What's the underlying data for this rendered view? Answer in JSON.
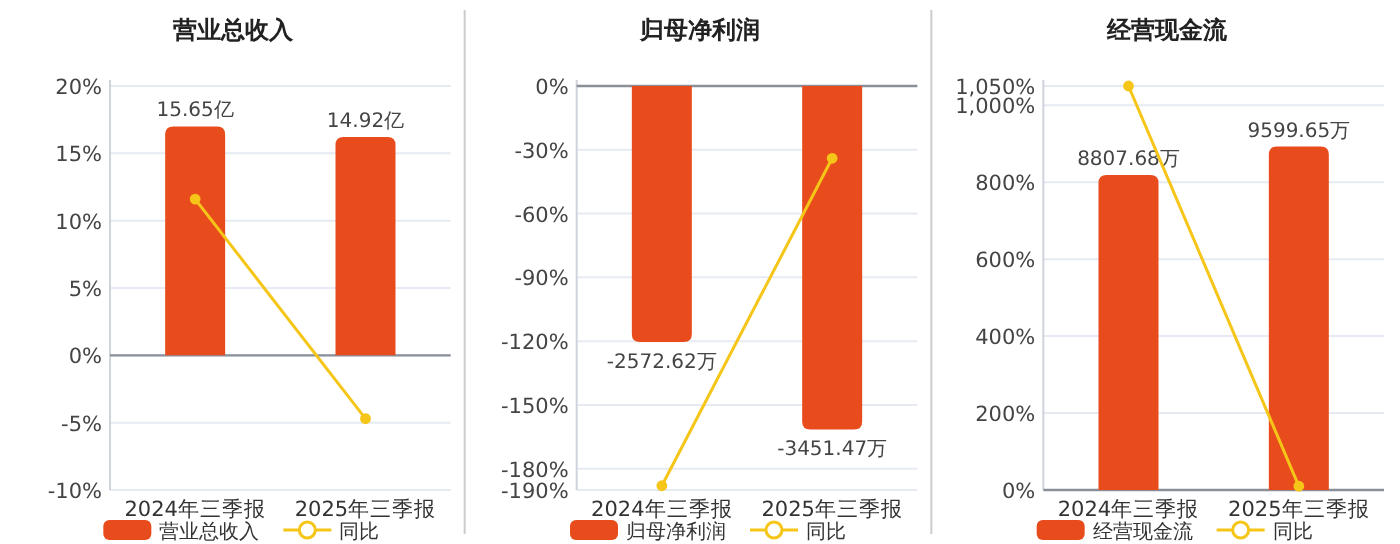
{
  "chart_data": [
    {
      "type": "bar",
      "title": "营业总收入",
      "categories": [
        "2024年三季报",
        "2025年三季报"
      ],
      "series": [
        {
          "name": "营业总收入",
          "color": "#e84c1c",
          "values": [
            15.65,
            14.92
          ],
          "value_labels": [
            "15.65亿",
            "14.92亿"
          ],
          "axis": "y2"
        },
        {
          "name": "同比",
          "type": "line",
          "color": "#f5c518",
          "values": [
            11.6,
            -4.7
          ],
          "marker": "circle"
        }
      ],
      "ylim": [
        -10,
        20
      ],
      "yticks": [
        {
          "value": -10,
          "label": "-10%"
        },
        {
          "value": -5,
          "label": "-5%"
        },
        {
          "value": 0,
          "label": "0%"
        },
        {
          "value": 5,
          "label": "5%"
        },
        {
          "value": 10,
          "label": "10%"
        },
        {
          "value": 15,
          "label": "15%"
        },
        {
          "value": 20,
          "label": "20%"
        }
      ],
      "grid": "y",
      "legend": "bottom"
    },
    {
      "type": "bar",
      "title": "归母净利润",
      "categories": [
        "2024年三季报",
        "2025年三季报"
      ],
      "series": [
        {
          "name": "归母净利润",
          "color": "#e84c1c",
          "values": [
            -2572.62,
            -3451.47
          ],
          "value_labels": [
            "-2572.62万",
            "-3451.47万"
          ],
          "axis": "y2"
        },
        {
          "name": "同比",
          "type": "line",
          "color": "#f5c518",
          "values": [
            -188,
            -34
          ],
          "marker": "circle"
        }
      ],
      "ylim": [
        -190,
        0
      ],
      "yticks": [
        {
          "value": -190,
          "label": "-190%"
        },
        {
          "value": -180,
          "label": "-180%"
        },
        {
          "value": -150,
          "label": "-150%"
        },
        {
          "value": -120,
          "label": "-120%"
        },
        {
          "value": -90,
          "label": "-90%"
        },
        {
          "value": -60,
          "label": "-60%"
        },
        {
          "value": -30,
          "label": "-30%"
        },
        {
          "value": 0,
          "label": "0%"
        }
      ],
      "grid": "y",
      "legend": "bottom"
    },
    {
      "type": "bar",
      "title": "经营现金流",
      "categories": [
        "2024年三季报",
        "2025年三季报"
      ],
      "series": [
        {
          "name": "经营现金流",
          "color": "#e84c1c",
          "values": [
            8807.68,
            9599.65
          ],
          "value_labels": [
            "8807.68万",
            "9599.65万"
          ],
          "axis": "y2"
        },
        {
          "name": "同比",
          "type": "line",
          "color": "#f5c518",
          "values": [
            1050,
            10
          ],
          "marker": "circle"
        }
      ],
      "ylim": [
        0,
        1050
      ],
      "yticks": [
        {
          "value": 0,
          "label": "0%"
        },
        {
          "value": 200,
          "label": "200%"
        },
        {
          "value": 400,
          "label": "400%"
        },
        {
          "value": 600,
          "label": "600%"
        },
        {
          "value": 800,
          "label": "800%"
        },
        {
          "value": 1000,
          "label": "1,000%"
        },
        {
          "value": 1050,
          "label": "1,050%"
        }
      ],
      "grid": "y",
      "legend": "bottom"
    }
  ]
}
